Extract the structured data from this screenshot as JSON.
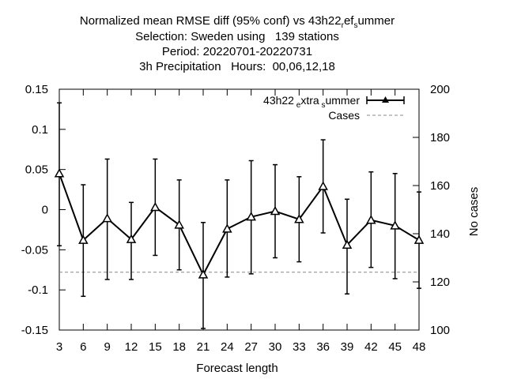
{
  "chart_data": {
    "type": "line",
    "title_lines": [
      "Normalized mean RMSE diff (95% conf) vs 43h22",
      "Selection: Sweden using   139 stations",
      "Period: 20220701-20220731",
      "3h Precipitation   Hours:  00,06,12,18"
    ],
    "title_ref": {
      "base": "43h22",
      "sub1": "r",
      "mid": "ef",
      "sub2": "s",
      "end": "ummer"
    },
    "xlabel": "Forecast length",
    "ylabel_right": "No cases",
    "x": [
      3,
      6,
      9,
      12,
      15,
      18,
      21,
      24,
      27,
      30,
      33,
      36,
      39,
      42,
      45,
      48
    ],
    "xlim": [
      3,
      48
    ],
    "ylim": [
      -0.15,
      0.15
    ],
    "y2lim": [
      100,
      200
    ],
    "yticks": [
      "0.15",
      "0.1",
      "0.05",
      "0",
      "-0.05",
      "-0.1",
      "-0.15"
    ],
    "ytick_values": [
      0.15,
      0.1,
      0.05,
      0,
      -0.05,
      -0.1,
      -0.15
    ],
    "y2ticks": [
      "200",
      "180",
      "160",
      "140",
      "120",
      "100"
    ],
    "y2tick_values": [
      200,
      180,
      160,
      140,
      120,
      100
    ],
    "series": [
      {
        "name": {
          "base": "43h22",
          "sub1": "e",
          "mid": "xtra",
          "sub2": "s",
          "end": "ummer"
        },
        "color": "#000000",
        "values": [
          0.045,
          -0.038,
          -0.011,
          -0.037,
          0.003,
          -0.019,
          -0.081,
          -0.024,
          -0.009,
          -0.002,
          -0.012,
          0.029,
          -0.044,
          -0.013,
          -0.02,
          -0.038
        ],
        "err_low": [
          -0.045,
          -0.108,
          -0.087,
          -0.087,
          -0.057,
          -0.075,
          -0.148,
          -0.084,
          -0.08,
          -0.06,
          -0.065,
          -0.029,
          -0.105,
          -0.072,
          -0.086,
          -0.098
        ],
        "err_high": [
          0.133,
          0.031,
          0.063,
          0.009,
          0.063,
          0.037,
          -0.016,
          0.037,
          0.061,
          0.056,
          0.041,
          0.087,
          0.013,
          0.047,
          0.045,
          0.022
        ]
      },
      {
        "name": "Cases",
        "color": "#888888",
        "axis": "y2",
        "values": [
          124,
          124,
          124,
          124,
          124,
          124,
          124,
          124,
          124,
          124,
          124,
          124,
          124,
          124,
          124,
          124
        ]
      }
    ],
    "grid": false,
    "legend": "top-right"
  }
}
